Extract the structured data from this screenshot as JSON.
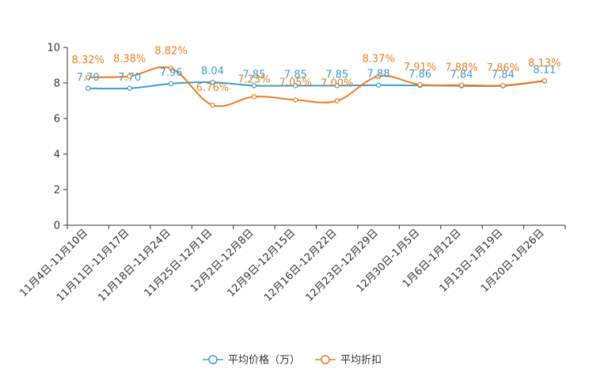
{
  "chart_data": {
    "type": "line",
    "title": "",
    "xlabel": "",
    "ylabel": "",
    "ylim": [
      0,
      10
    ],
    "yticks": [
      0,
      2,
      4,
      6,
      8,
      10
    ],
    "categories": [
      "11月4日-11月10日",
      "11月11日-11月17日",
      "11月18日-11月24日",
      "11月25日-12月1日",
      "12月2日-12月8日",
      "12月9日-12月15日",
      "12月16日-12月22日",
      "12月23日-12月29日",
      "12月30日-1月5日",
      "1月6日-1月12日",
      "1月13日-1月19日",
      "1月20日-1月26日"
    ],
    "series": [
      {
        "name": "平均价格（万）",
        "color": "#3a9fcf",
        "values": [
          7.7,
          7.7,
          7.96,
          8.04,
          7.85,
          7.85,
          7.85,
          7.88,
          7.86,
          7.84,
          7.84,
          8.11
        ],
        "labels": [
          "7.70",
          "7.70",
          "7.96",
          "8.04",
          "7.85",
          "7.85",
          "7.85",
          "7.88",
          "7.86",
          "7.84",
          "7.84",
          "8.11"
        ]
      },
      {
        "name": "平均折扣",
        "color": "#ee7d1f",
        "values": [
          8.32,
          8.38,
          8.82,
          6.76,
          7.23,
          7.05,
          7.0,
          8.37,
          7.91,
          7.88,
          7.86,
          8.13
        ],
        "labels": [
          "8.32%",
          "8.38%",
          "8.82%",
          "6.76%",
          "7.23%",
          "7.05%",
          "7.00%",
          "8.37%",
          "7.91%",
          "7.88%",
          "7.86%",
          "8.13%"
        ]
      }
    ],
    "legend_position": "bottom-center"
  }
}
